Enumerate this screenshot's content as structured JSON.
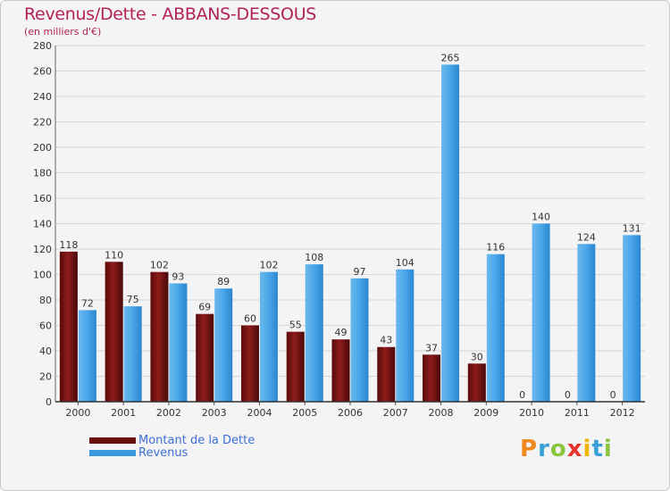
{
  "chart_data": {
    "type": "bar",
    "title": "Revenus/Dette - ABBANS-DESSOUS",
    "subtitle": "(en milliers d'€)",
    "categories": [
      "2000",
      "2001",
      "2002",
      "2003",
      "2004",
      "2005",
      "2006",
      "2007",
      "2008",
      "2009",
      "2010",
      "2011",
      "2012"
    ],
    "series": [
      {
        "name": "Montant de la Dette",
        "color": "#7a1414",
        "values": [
          118,
          110,
          102,
          69,
          60,
          55,
          49,
          43,
          37,
          30,
          0,
          0,
          0
        ]
      },
      {
        "name": "Revenus",
        "color": "#3a9ae0",
        "values": [
          72,
          75,
          93,
          89,
          102,
          108,
          97,
          104,
          265,
          116,
          140,
          124,
          131
        ]
      }
    ],
    "ylim": [
      0,
      280
    ],
    "yticks": [
      0,
      20,
      40,
      60,
      80,
      100,
      120,
      140,
      160,
      180,
      200,
      220,
      240,
      260,
      280
    ],
    "grid": true,
    "legend": "bottom-left"
  },
  "logo_text": "Proxiti"
}
